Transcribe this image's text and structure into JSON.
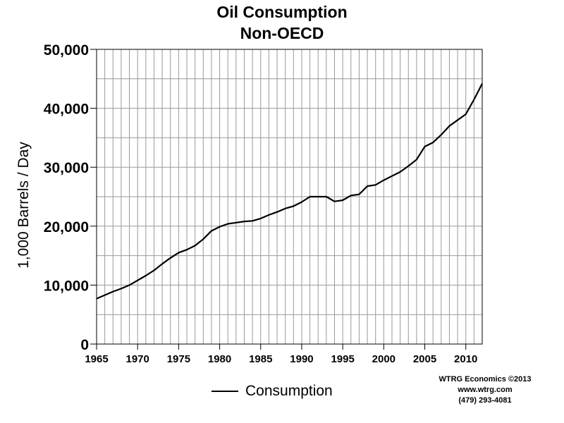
{
  "chart_data": {
    "type": "line",
    "title": "Oil Consumption",
    "subtitle": "Non-OECD",
    "xlabel": "",
    "ylabel": "1,000 Barrels / Day",
    "xlim": [
      1965,
      2012
    ],
    "ylim": [
      0,
      50000
    ],
    "x_ticks": [
      "1965",
      "1970",
      "1975",
      "1980",
      "1985",
      "1990",
      "1995",
      "2000",
      "2005",
      "2010"
    ],
    "y_ticks": [
      "0",
      "10,000",
      "20,000",
      "30,000",
      "40,000",
      "50,000"
    ],
    "grid": true,
    "legend_position": "bottom",
    "x": [
      1965,
      1966,
      1967,
      1968,
      1969,
      1970,
      1971,
      1972,
      1973,
      1974,
      1975,
      1976,
      1977,
      1978,
      1979,
      1980,
      1981,
      1982,
      1983,
      1984,
      1985,
      1986,
      1987,
      1988,
      1989,
      1990,
      1991,
      1992,
      1993,
      1994,
      1995,
      1996,
      1997,
      1998,
      1999,
      2000,
      2001,
      2002,
      2003,
      2004,
      2005,
      2006,
      2007,
      2008,
      2009,
      2010,
      2011,
      2012
    ],
    "series": [
      {
        "name": "Consumption",
        "color": "#000000",
        "values": [
          7700,
          8300,
          8900,
          9400,
          10000,
          10800,
          11600,
          12500,
          13600,
          14600,
          15500,
          16000,
          16700,
          17800,
          19200,
          19900,
          20400,
          20600,
          20800,
          20900,
          21300,
          21900,
          22400,
          23000,
          23400,
          24100,
          25000,
          25000,
          25000,
          24200,
          24400,
          25200,
          25400,
          26800,
          27000,
          27800,
          28500,
          29200,
          30200,
          31300,
          33500,
          34200,
          35500,
          37000,
          38000,
          39000,
          41500,
          44200
        ]
      }
    ]
  },
  "credit": {
    "line1": "WTRG Economics  ©2013",
    "line2": "www.wtrg.com",
    "line3": "(479) 293-4081"
  }
}
